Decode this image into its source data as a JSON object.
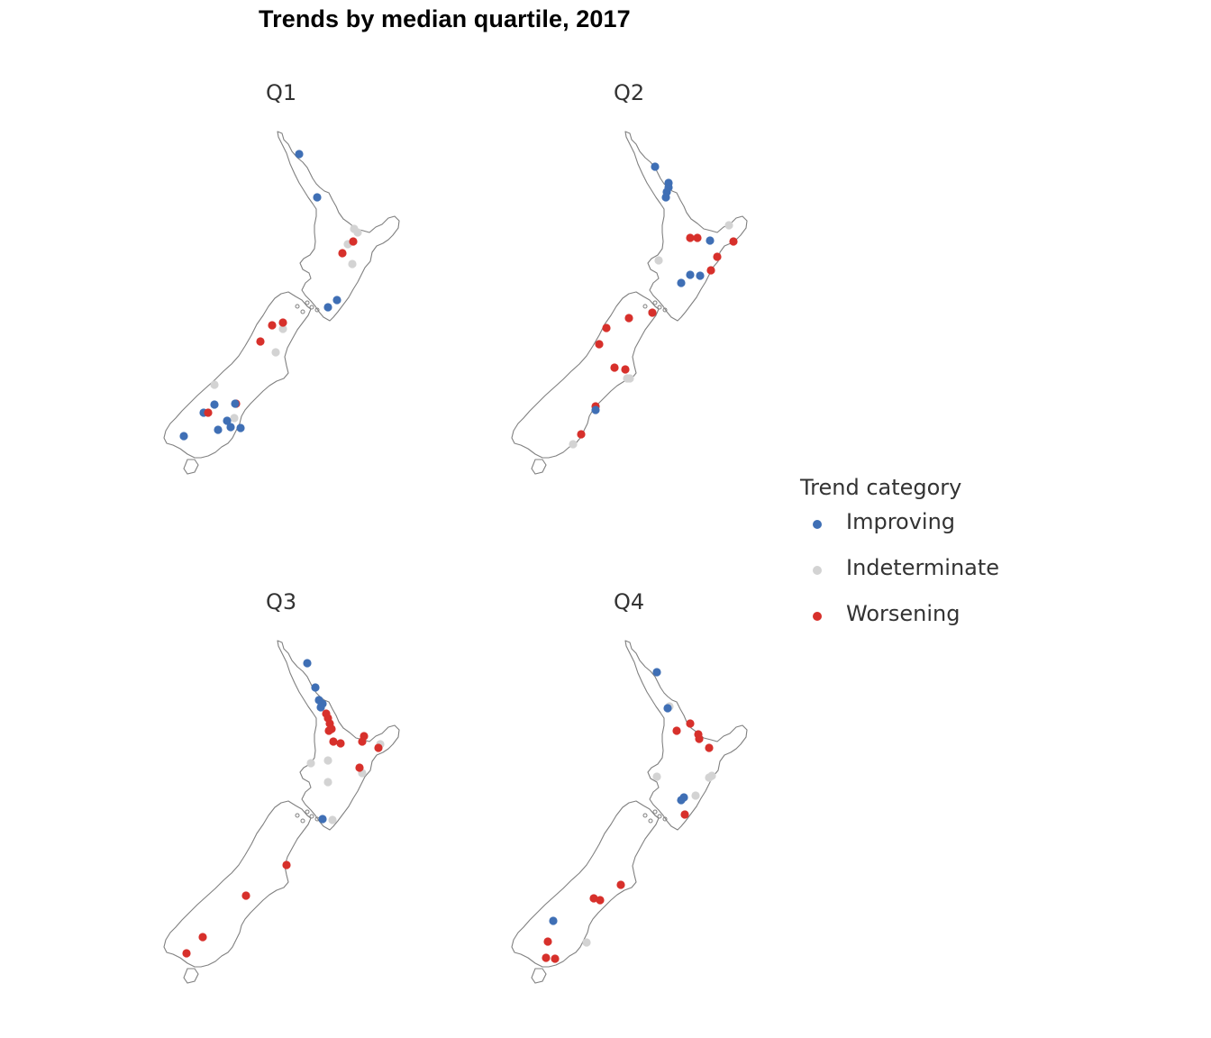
{
  "title": "Trends by median quartile, 2017",
  "panels": [
    {
      "label": "Q1"
    },
    {
      "label": "Q2"
    },
    {
      "label": "Q3"
    },
    {
      "label": "Q4"
    }
  ],
  "legend": {
    "title": "Trend category",
    "items": [
      {
        "label": "Improving",
        "color": "#3f6fb5"
      },
      {
        "label": "Indeterminate",
        "color": "#d3d3d3"
      },
      {
        "label": "Worsening",
        "color": "#d7302b"
      }
    ]
  },
  "outline_color": "#808080"
}
